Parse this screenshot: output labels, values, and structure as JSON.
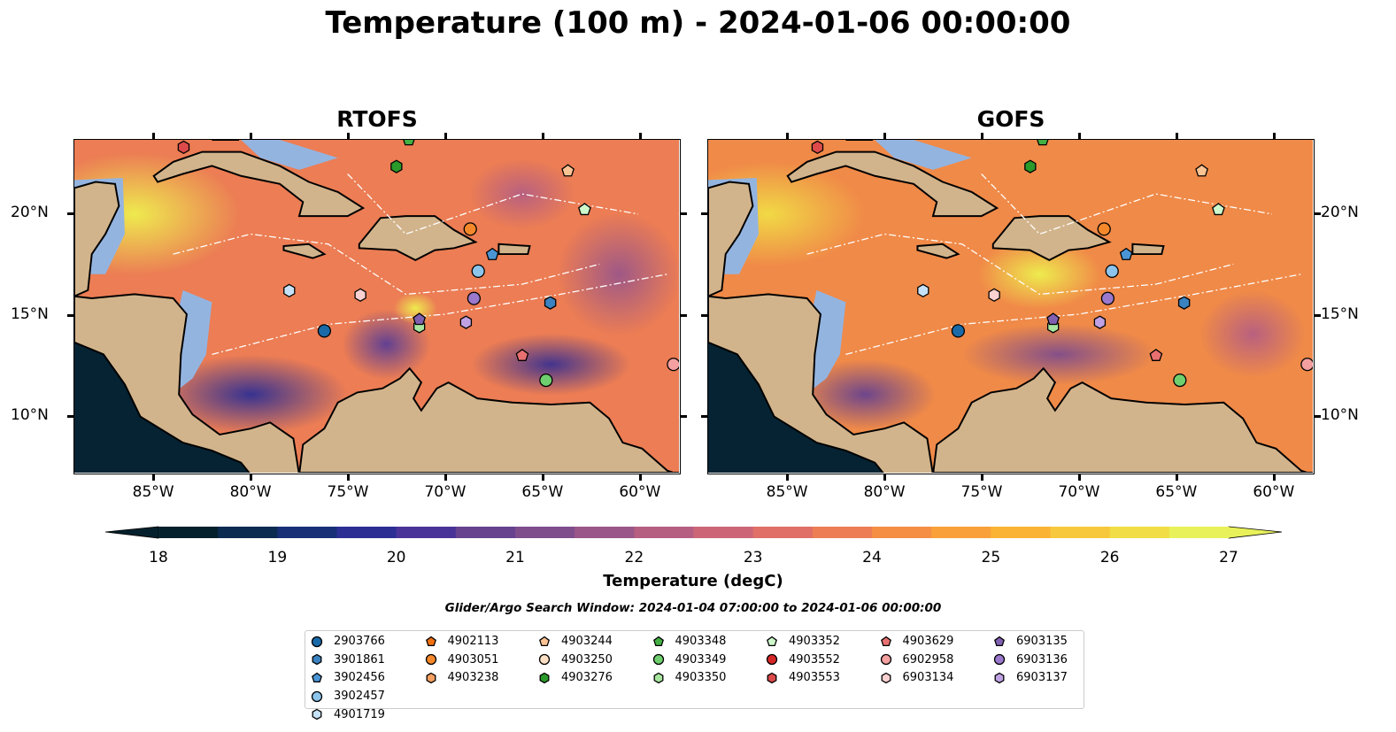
{
  "title": "Temperature (100 m) - 2024-01-06 00:00:00",
  "panels": [
    {
      "title": "RTOFS"
    },
    {
      "title": "GOFS"
    }
  ],
  "axes": {
    "lon_ticks": [
      "85°W",
      "80°W",
      "75°W",
      "70°W",
      "65°W",
      "60°W"
    ],
    "lat_ticks": [
      "20°N",
      "15°N",
      "10°N"
    ],
    "lon_range": [
      -89.1,
      -57.9
    ],
    "lat_range": [
      7.1,
      23.7
    ]
  },
  "colorbar": {
    "label": "Temperature (degC)",
    "ticks": [
      "18",
      "19",
      "20",
      "21",
      "22",
      "23",
      "24",
      "25",
      "26",
      "27"
    ],
    "range": [
      18,
      27
    ],
    "step": 0.5,
    "extend": "both",
    "colors": [
      "#04202c",
      "#0b2b50",
      "#172f77",
      "#2d2e94",
      "#4a3398",
      "#66428f",
      "#7f4d8c",
      "#9a5689",
      "#b55e82",
      "#cc6677",
      "#df6f67",
      "#ec7d54",
      "#f58e43",
      "#f9a03a",
      "#fbb336",
      "#f8c83c",
      "#f1dd45",
      "#e8f15a"
    ]
  },
  "search_window": "Glider/Argo Search Window: 2024-01-04 07:00:00 to 2024-01-06 00:00:00",
  "legend": [
    {
      "id": "2903766",
      "shape": "circle",
      "color": "#1a6aa8"
    },
    {
      "id": "3901861",
      "shape": "hexagon",
      "color": "#3b82c0"
    },
    {
      "id": "3902456",
      "shape": "pentagon",
      "color": "#4a95d6"
    },
    {
      "id": "3902457",
      "shape": "circle",
      "color": "#8cc4ec"
    },
    {
      "id": "4901719",
      "shape": "hexagon",
      "color": "#c6e2f8"
    },
    {
      "id": "4902113",
      "shape": "pentagon",
      "color": "#f07010"
    },
    {
      "id": "4903051",
      "shape": "circle",
      "color": "#f5882a"
    },
    {
      "id": "4903238",
      "shape": "hexagon",
      "color": "#f8a060"
    },
    {
      "id": "4903244",
      "shape": "pentagon",
      "color": "#fcc393"
    },
    {
      "id": "4903250",
      "shape": "circle",
      "color": "#fde0c4"
    },
    {
      "id": "4903276",
      "shape": "hexagon",
      "color": "#2a9a2a"
    },
    {
      "id": "4903348",
      "shape": "pentagon",
      "color": "#44b044"
    },
    {
      "id": "4903349",
      "shape": "circle",
      "color": "#6fcf6f"
    },
    {
      "id": "4903350",
      "shape": "hexagon",
      "color": "#a8e6a0"
    },
    {
      "id": "4903352",
      "shape": "pentagon",
      "color": "#cdf8cc"
    },
    {
      "id": "4903552",
      "shape": "circle",
      "color": "#d62728"
    },
    {
      "id": "4903553",
      "shape": "hexagon",
      "color": "#dc4a4a"
    },
    {
      "id": "4903629",
      "shape": "pentagon",
      "color": "#e87070"
    },
    {
      "id": "6902958",
      "shape": "circle",
      "color": "#f4a0a0"
    },
    {
      "id": "6903134",
      "shape": "hexagon",
      "color": "#fbd0d0"
    },
    {
      "id": "6903135",
      "shape": "pentagon",
      "color": "#8060b0"
    },
    {
      "id": "6903136",
      "shape": "circle",
      "color": "#9a78cc"
    },
    {
      "id": "6903137",
      "shape": "hexagon",
      "color": "#c0a2e4"
    }
  ],
  "floats": [
    {
      "id": "4903553",
      "lon": -83.46,
      "lat": 23.33
    },
    {
      "id": "4903348",
      "lon": -71.84,
      "lat": 23.7
    },
    {
      "id": "4903276",
      "lon": -72.48,
      "lat": 22.37
    },
    {
      "id": "4903244",
      "lon": -63.63,
      "lat": 22.15
    },
    {
      "id": "4903352",
      "lon": -62.77,
      "lat": 20.22
    },
    {
      "id": "4903051",
      "lon": -68.67,
      "lat": 19.25
    },
    {
      "id": "3902456",
      "lon": -67.53,
      "lat": 17.98
    },
    {
      "id": "3902457",
      "lon": -68.26,
      "lat": 17.15
    },
    {
      "id": "4901719",
      "lon": -78.01,
      "lat": 16.18
    },
    {
      "id": "6903134",
      "lon": -74.34,
      "lat": 15.96
    },
    {
      "id": "6903136",
      "lon": -68.48,
      "lat": 15.79
    },
    {
      "id": "3901861",
      "lon": -64.54,
      "lat": 15.57
    },
    {
      "id": "4903350",
      "lon": -71.3,
      "lat": 14.39
    },
    {
      "id": "6903135",
      "lon": -71.3,
      "lat": 14.74
    },
    {
      "id": "6903137",
      "lon": -68.89,
      "lat": 14.6
    },
    {
      "id": "2903766",
      "lon": -76.2,
      "lat": 14.17
    },
    {
      "id": "4903629",
      "lon": -65.99,
      "lat": 12.94
    },
    {
      "id": "6902958",
      "lon": -58.18,
      "lat": 12.5
    },
    {
      "id": "4903349",
      "lon": -64.76,
      "lat": 11.71
    }
  ]
}
